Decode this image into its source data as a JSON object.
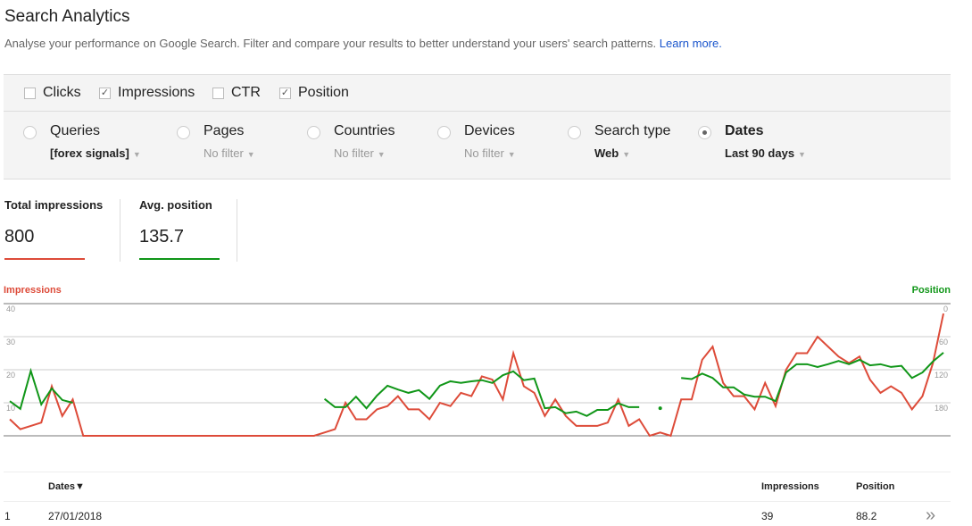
{
  "header": {
    "title": "Search Analytics",
    "subtitle": "Analyse your performance on Google Search. Filter and compare your results to better understand your users' search patterns.",
    "learn_more": "Learn more."
  },
  "metrics": [
    {
      "label": "Clicks",
      "checked": false
    },
    {
      "label": "Impressions",
      "checked": true
    },
    {
      "label": "CTR",
      "checked": false
    },
    {
      "label": "Position",
      "checked": true
    }
  ],
  "dimensions": [
    {
      "label": "Queries",
      "value": "[forex signals]",
      "selected": false
    },
    {
      "label": "Pages",
      "value": "No filter",
      "selected": false
    },
    {
      "label": "Countries",
      "value": "No filter",
      "selected": false
    },
    {
      "label": "Devices",
      "value": "No filter",
      "selected": false
    },
    {
      "label": "Search type",
      "value": "Web",
      "selected": false
    },
    {
      "label": "Dates",
      "value": "Last 90 days",
      "selected": true
    }
  ],
  "stats": [
    {
      "label": "Total impressions",
      "value": "800",
      "color": "#dd4b39"
    },
    {
      "label": "Avg. position",
      "value": "135.7",
      "color": "#109618"
    }
  ],
  "chart_data": {
    "type": "line",
    "left_axis_label": "Impressions",
    "right_axis_label": "Position",
    "left_ticks": [
      "40",
      "30",
      "20",
      "10"
    ],
    "right_ticks": [
      "0",
      "60",
      "120",
      "180"
    ],
    "left_range": [
      0,
      40
    ],
    "right_range": [
      240,
      0
    ],
    "grid": true,
    "series": [
      {
        "name": "Impressions",
        "axis": "left",
        "color": "#dd4b39",
        "values": [
          5,
          2,
          3,
          4,
          15,
          6,
          11,
          0,
          0,
          0,
          0,
          0,
          0,
          0,
          0,
          0,
          0,
          0,
          0,
          0,
          0,
          0,
          0,
          0,
          0,
          0,
          0,
          0,
          0,
          0,
          1,
          2,
          10,
          5,
          5,
          8,
          9,
          12,
          8,
          8,
          5,
          10,
          9,
          13,
          12,
          18,
          17,
          11,
          25,
          15,
          13,
          6,
          11,
          6,
          3,
          3,
          3,
          4,
          11,
          3,
          5,
          0,
          1,
          0,
          11,
          11,
          23,
          27,
          16,
          12,
          12,
          8,
          16,
          9,
          20,
          25,
          25,
          30,
          27,
          24,
          22,
          24,
          17,
          13,
          15,
          13,
          8,
          12,
          22,
          37
        ]
      },
      {
        "name": "Position",
        "axis": "right",
        "color": "#109618",
        "values": [
          177,
          191,
          122,
          183,
          154,
          175,
          180,
          null,
          null,
          null,
          null,
          null,
          null,
          null,
          null,
          null,
          null,
          null,
          null,
          null,
          null,
          null,
          null,
          null,
          null,
          null,
          null,
          null,
          null,
          null,
          173,
          188,
          188,
          169,
          190,
          167,
          149,
          156,
          162,
          157,
          173,
          149,
          141,
          144,
          141,
          139,
          144,
          130,
          123,
          139,
          136,
          190,
          188,
          199,
          196,
          204,
          193,
          193,
          181,
          188,
          188,
          null,
          190,
          null,
          135,
          137,
          127,
          135,
          152,
          152,
          165,
          169,
          169,
          177,
          125,
          110,
          110,
          115,
          110,
          104,
          110,
          102,
          112,
          110,
          115,
          113,
          135,
          125,
          105,
          89
        ]
      }
    ]
  },
  "table": {
    "headers": {
      "dates": "Dates▼",
      "impressions": "Impressions",
      "position": "Position"
    },
    "rows": [
      {
        "index": "1",
        "date": "27/01/2018",
        "impressions": "39",
        "position": "88.2"
      }
    ],
    "more_icon": "»"
  }
}
